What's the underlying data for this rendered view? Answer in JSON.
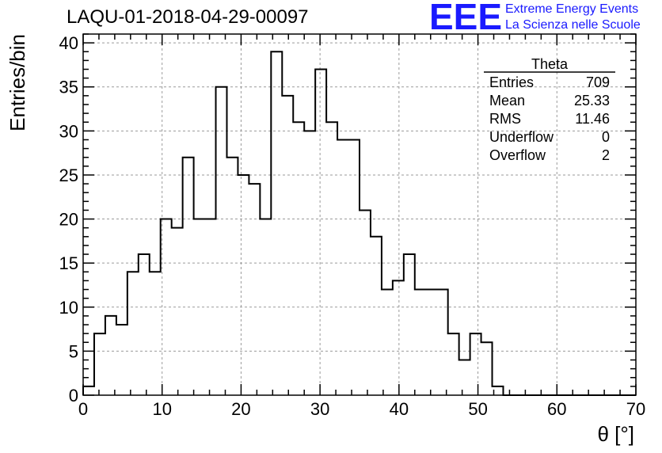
{
  "colors": {
    "accent": "#1a1aff",
    "grid": "#9a9a9a",
    "line": "#000000"
  },
  "logo": {
    "mark": "EEE",
    "line1": "Extreme Energy Events",
    "line2": "La Scienza nelle Scuole"
  },
  "chart_data": {
    "type": "histogram",
    "title": "LAQU-01-2018-04-29-00097",
    "xlabel": "θ [°]",
    "ylabel": "Entries/bin",
    "xlim": [
      0,
      70
    ],
    "ylim": [
      0,
      41
    ],
    "bin_width": 1.4,
    "x_ticks": [
      0,
      10,
      20,
      30,
      40,
      50,
      60,
      70
    ],
    "y_ticks": [
      0,
      5,
      10,
      15,
      20,
      25,
      30,
      35,
      40
    ],
    "grid": true,
    "values": [
      1,
      7,
      9,
      8,
      14,
      16,
      14,
      20,
      19,
      27,
      20,
      20,
      35,
      27,
      25,
      24,
      20,
      39,
      34,
      31,
      30,
      37,
      31,
      29,
      29,
      21,
      18,
      12,
      13,
      16,
      12,
      12,
      12,
      7,
      4,
      7,
      6,
      1,
      0,
      0,
      0,
      0,
      0,
      0,
      0,
      0,
      0,
      0,
      0,
      0
    ],
    "stats": {
      "title": "Theta",
      "rows": [
        {
          "label": "Entries",
          "value": "709"
        },
        {
          "label": "Mean",
          "value": "25.33"
        },
        {
          "label": "RMS",
          "value": "11.46"
        },
        {
          "label": "Underflow",
          "value": "0"
        },
        {
          "label": "Overflow",
          "value": "2"
        }
      ]
    }
  }
}
